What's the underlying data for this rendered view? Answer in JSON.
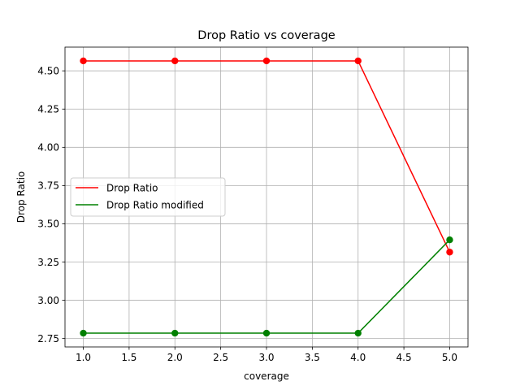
{
  "chart_data": {
    "type": "line",
    "title": "Drop Ratio vs coverage",
    "xlabel": "coverage",
    "ylabel": "Drop Ratio",
    "x": [
      1.0,
      2.0,
      3.0,
      4.0,
      5.0
    ],
    "series": [
      {
        "name": "Drop Ratio",
        "color": "#ff0000",
        "values": [
          4.565,
          4.565,
          4.565,
          4.565,
          3.315
        ]
      },
      {
        "name": "Drop Ratio modified",
        "color": "#008000",
        "values": [
          2.785,
          2.785,
          2.785,
          2.785,
          3.395
        ]
      }
    ],
    "xlim": [
      0.8,
      5.2
    ],
    "ylim": [
      2.695,
      4.655
    ],
    "xticks": [
      "1.0",
      "1.5",
      "2.0",
      "2.5",
      "3.0",
      "3.5",
      "4.0",
      "4.5",
      "5.0"
    ],
    "yticks": [
      "2.75",
      "3.00",
      "3.25",
      "3.50",
      "3.75",
      "4.00",
      "4.25",
      "4.50"
    ],
    "grid": true,
    "legend_position": "center-left",
    "markers": "circle"
  }
}
